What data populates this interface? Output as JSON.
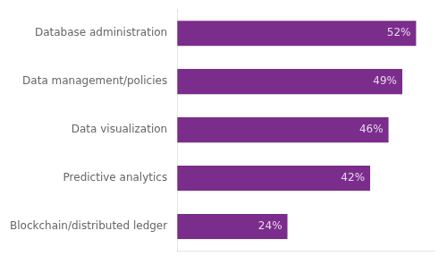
{
  "chart_data": {
    "type": "bar",
    "orientation": "horizontal",
    "categories": [
      "Blockchain/distributed ledger",
      "Predictive analytics",
      "Data visualization",
      "Data management/policies",
      "Database administration"
    ],
    "values": [
      24,
      42,
      46,
      49,
      52
    ],
    "value_labels": [
      "24%",
      "42%",
      "46%",
      "49%",
      "52%"
    ],
    "data_labels": true,
    "color": "#7B2D8B",
    "xlim": [
      0,
      56
    ],
    "grid": false,
    "legend": false,
    "tick_labels": "y"
  }
}
